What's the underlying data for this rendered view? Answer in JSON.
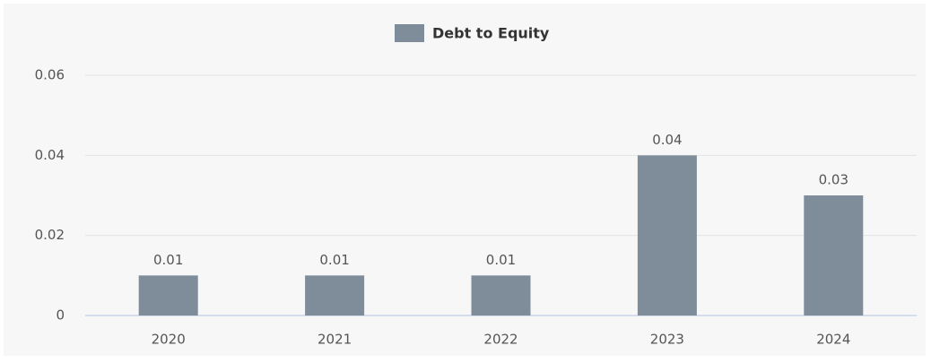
{
  "chart_data": {
    "type": "bar",
    "categories": [
      "2020",
      "2021",
      "2022",
      "2023",
      "2024"
    ],
    "series": [
      {
        "name": "Debt to Equity",
        "color": "#7f8d9a",
        "values": [
          0.01,
          0.01,
          0.01,
          0.04,
          0.03
        ]
      }
    ],
    "ylim": [
      0,
      0.06
    ],
    "yticks": [
      0,
      0.02,
      0.04,
      0.06
    ],
    "grid": true,
    "legend": "top"
  }
}
